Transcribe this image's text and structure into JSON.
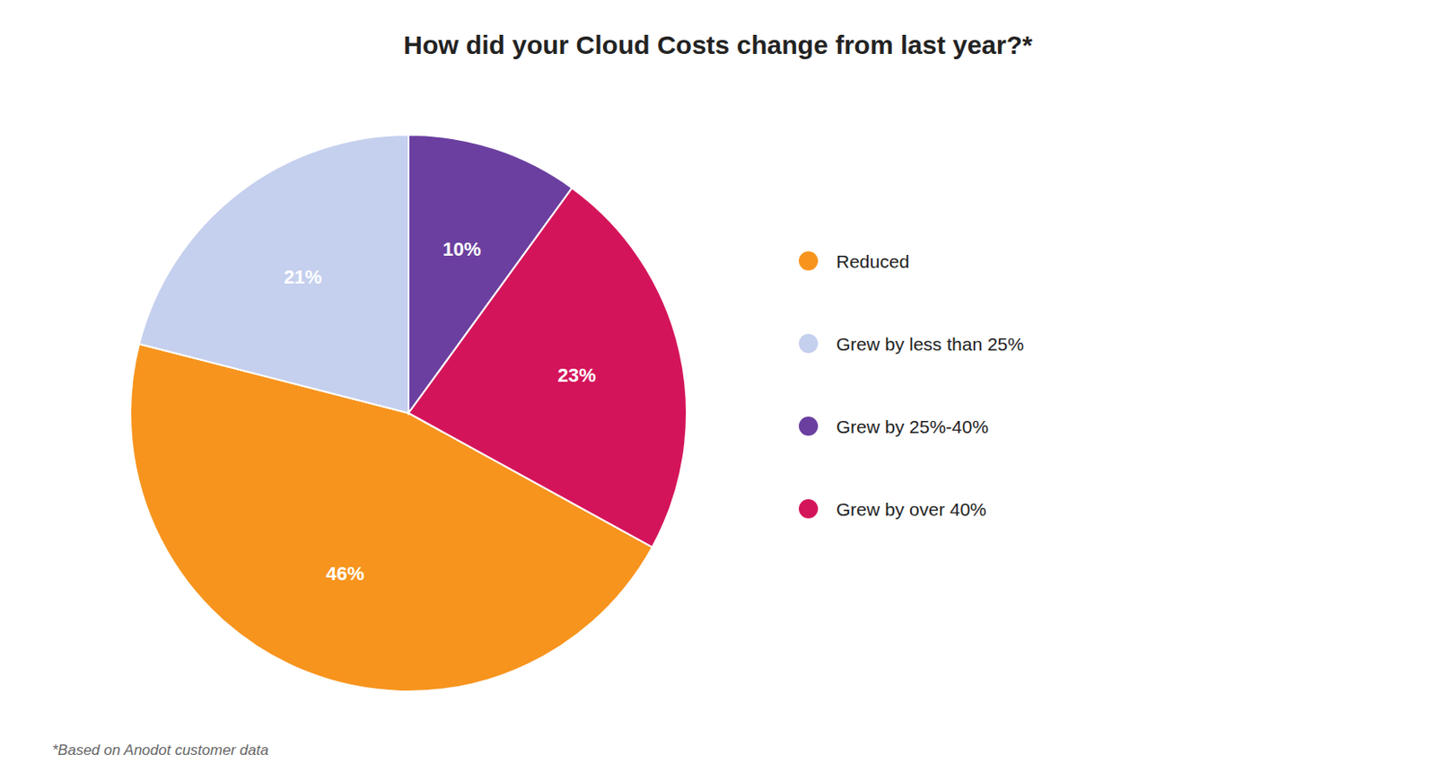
{
  "chart_data": {
    "type": "pie",
    "title": "How did your Cloud Costs change from last year?*",
    "annotations": [
      "*Based on Anodot customer data"
    ],
    "categories": [
      "Reduced",
      "Grew by less than 25%",
      "Grew by 25%-40%",
      "Grew by over 40%"
    ],
    "values": [
      46,
      21,
      10,
      23
    ],
    "value_labels": [
      "46%",
      "21%",
      "10%",
      "23%"
    ],
    "colors": [
      "#F7941D",
      "#C5CFEE",
      "#6B3FA0",
      "#D4145A"
    ],
    "data_labels": true,
    "legend": "right"
  }
}
